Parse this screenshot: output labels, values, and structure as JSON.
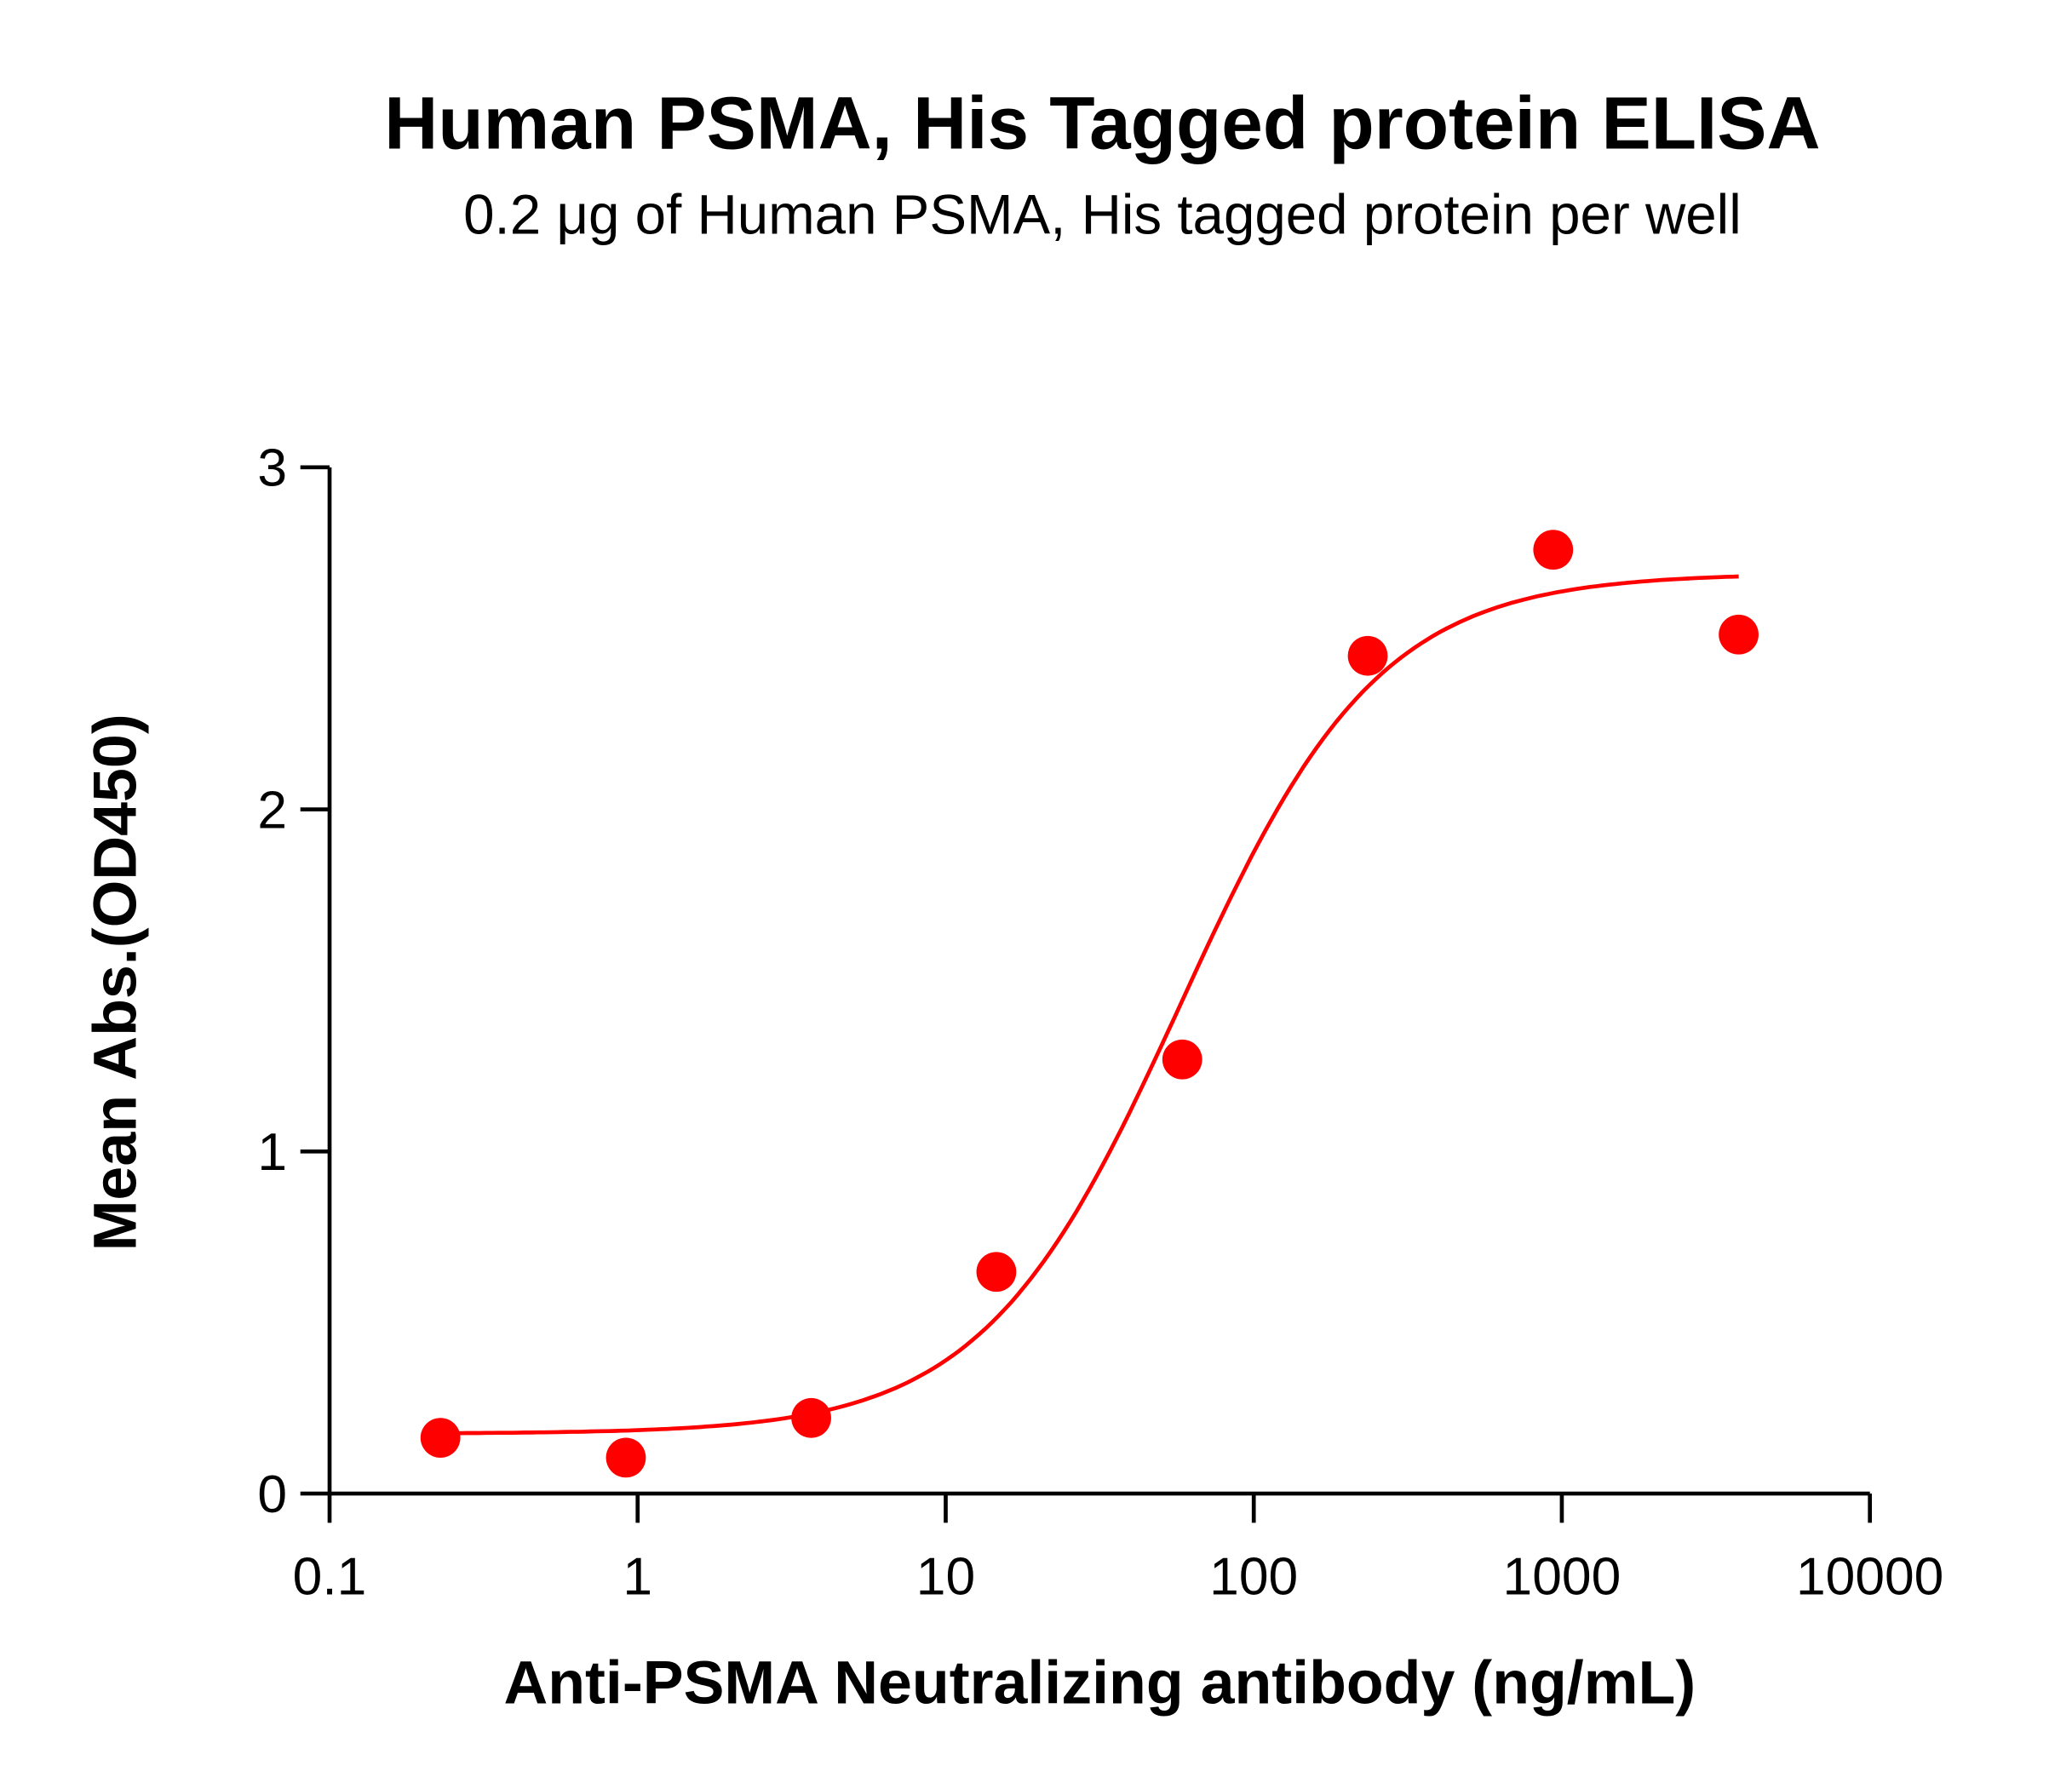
{
  "chart_data": {
    "type": "scatter",
    "title": "Human PSMA, His Tagged protein ELISA",
    "subtitle": "0.2 μg of Human PSMA, His tagged protein per well",
    "xlabel": "Anti-PSMA Neutralizing antibody (ng/mL)",
    "ylabel": "Mean Abs.(OD450)",
    "xscale": "log",
    "xlim": [
      0.1,
      10000
    ],
    "ylim": [
      0,
      3
    ],
    "xticks": [
      "0.1",
      "1",
      "10",
      "100",
      "1000",
      "10000"
    ],
    "yticks": [
      "0",
      "1",
      "2",
      "3"
    ],
    "grid": false,
    "color": "#ff0000",
    "fit": "sigmoidal curve",
    "series": [
      {
        "x": [
          0.229,
          0.916,
          3.66,
          14.6,
          58.6,
          234.4,
          937.5,
          3750
        ],
        "y": [
          0.163,
          0.105,
          0.221,
          0.648,
          1.269,
          2.449,
          2.759,
          2.511
        ]
      }
    ]
  }
}
